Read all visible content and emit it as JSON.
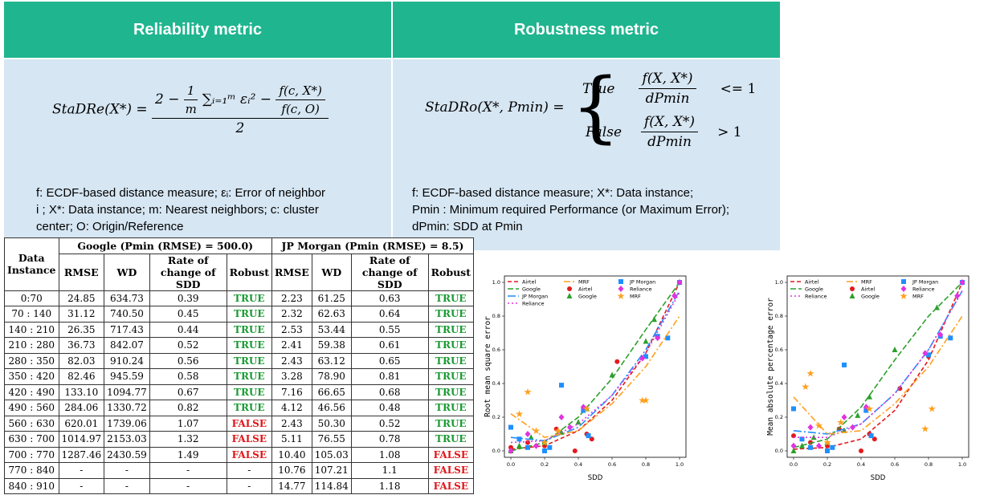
{
  "reliability": {
    "title": "Reliability metric",
    "formula_lhs": "StaDRe(X*) =",
    "num_2": "2 −",
    "frac1_num": "1",
    "frac1_den": "m",
    "sum_term": "∑ᵢ₌₁ᵐ εᵢ² −",
    "frac2_num": "f(c, X*)",
    "frac2_den": "f(c, O)",
    "den": "2",
    "desc_lines": [
      "f: ECDF-based distance measure; εᵢ: Error of neighbor",
      "i ; X*: Data instance;  m: Nearest neighbors; c: cluster",
      "center; O: Origin/Reference"
    ]
  },
  "robustness": {
    "title": "Robustness metric",
    "formula_lhs": "StaDRo(X*, Pmin) =",
    "case_true": "True",
    "case_false": "False",
    "frac_num": "f(X, X*)",
    "frac_den": "dPmin",
    "cmp_true": "<= 1",
    "cmp_false": "> 1",
    "desc_lines": [
      "f: ECDF-based distance measure; X*: Data instance;",
      "Pmin : Minimum required Performance (or Maximum Error);",
      "dPmin: SDD at Pmin"
    ]
  },
  "table": {
    "col_data_instance": "Data Instance",
    "google_header": "Google (Pmin (RMSE) = 500.0)",
    "jp_header": "JP Morgan (Pmin (RMSE) = 8.5)",
    "sub_headers": [
      "RMSE",
      "WD",
      "Rate of change of SDD",
      "Robust",
      "RMSE",
      "WD",
      "Rate of change of SDD",
      "Robust"
    ],
    "rows": [
      [
        "0:70",
        "24.85",
        "634.73",
        "0.39",
        "TRUE",
        "2.23",
        "61.25",
        "0.63",
        "TRUE"
      ],
      [
        "70 : 140",
        "31.12",
        "740.50",
        "0.45",
        "TRUE",
        "2.32",
        "62.63",
        "0.64",
        "TRUE"
      ],
      [
        "140 : 210",
        "26.35",
        "717.43",
        "0.44",
        "TRUE",
        "2.53",
        "53.44",
        "0.55",
        "TRUE"
      ],
      [
        "210 : 280",
        "36.73",
        "842.07",
        "0.52",
        "TRUE",
        "2.41",
        "59.38",
        "0.61",
        "TRUE"
      ],
      [
        "280 : 350",
        "82.03",
        "910.24",
        "0.56",
        "TRUE",
        "2.43",
        "63.12",
        "0.65",
        "TRUE"
      ],
      [
        "350 : 420",
        "82.46",
        "945.59",
        "0.58",
        "TRUE",
        "3.28",
        "78.90",
        "0.81",
        "TRUE"
      ],
      [
        "420 : 490",
        "133.10",
        "1094.77",
        "0.67",
        "TRUE",
        "7.16",
        "66.65",
        "0.68",
        "TRUE"
      ],
      [
        "490 : 560",
        "284.06",
        "1330.72",
        "0.82",
        "TRUE",
        "4.12",
        "46.56",
        "0.48",
        "TRUE"
      ],
      [
        "560 : 630",
        "620.01",
        "1739.06",
        "1.07",
        "FALSE",
        "2.43",
        "50.30",
        "0.52",
        "TRUE"
      ],
      [
        "630 : 700",
        "1014.97",
        "2153.03",
        "1.32",
        "FALSE",
        "5.11",
        "76.55",
        "0.78",
        "TRUE"
      ],
      [
        "700 : 770",
        "1287.46",
        "2430.59",
        "1.49",
        "FALSE",
        "10.40",
        "105.03",
        "1.08",
        "FALSE"
      ],
      [
        "770 : 840",
        "-",
        "-",
        "-",
        "-",
        "10.76",
        "107.21",
        "1.1",
        "FALSE"
      ],
      [
        "840 : 910",
        "-",
        "-",
        "-",
        "-",
        "14.77",
        "114.84",
        "1.18",
        "FALSE"
      ]
    ]
  },
  "colors": {
    "header_green": "#1fb58f",
    "panel_blue": "#d6e6f3",
    "true_green": "#1a9a33",
    "false_red": "#e0161b",
    "airtel": "#e41a1c",
    "google": "#2ca02c",
    "jpmorgan": "#1f8fff",
    "reliance": "#e033e0",
    "mrf": "#ff9f1c"
  },
  "chart_data": [
    {
      "type": "scatter",
      "xlabel": "SDD",
      "ylabel": "Root mean square error",
      "xlim": [
        0,
        1
      ],
      "ylim": [
        0,
        1
      ],
      "xticks": [
        "0.0",
        "0.2",
        "0.4",
        "0.6",
        "0.8",
        "1.0"
      ],
      "yticks": [
        "0.0",
        "0.2",
        "0.4",
        "0.6",
        "0.8",
        "1.0"
      ],
      "legend_lines": [
        "Airtel",
        "Google",
        "JP Morgan",
        "Reliance",
        "MRF"
      ],
      "legend_points": [
        "Airtel",
        "Google",
        "JP Morgan",
        "Reliance",
        "MRF"
      ],
      "series": [
        {
          "name": "Airtel",
          "marker": "circle",
          "color": "#e41a1c",
          "points": [
            [
              0.0,
              0.02
            ],
            [
              0.1,
              0.05
            ],
            [
              0.2,
              0.03
            ],
            [
              0.27,
              0.13
            ],
            [
              0.38,
              0.0
            ],
            [
              0.45,
              0.1
            ],
            [
              0.48,
              0.07
            ],
            [
              0.63,
              0.53
            ],
            [
              0.8,
              0.56
            ],
            [
              1.0,
              1.0
            ]
          ],
          "fit": [
            [
              0,
              0.01
            ],
            [
              0.2,
              0.03
            ],
            [
              0.4,
              0.12
            ],
            [
              0.6,
              0.3
            ],
            [
              0.8,
              0.58
            ],
            [
              1.0,
              1.0
            ]
          ]
        },
        {
          "name": "Google",
          "marker": "triangle",
          "color": "#2ca02c",
          "points": [
            [
              0.0,
              0.0
            ],
            [
              0.05,
              0.03
            ],
            [
              0.12,
              0.08
            ],
            [
              0.2,
              0.05
            ],
            [
              0.3,
              0.11
            ],
            [
              0.4,
              0.17
            ],
            [
              0.45,
              0.25
            ],
            [
              0.6,
              0.45
            ],
            [
              0.8,
              0.65
            ],
            [
              0.85,
              0.78
            ],
            [
              1.0,
              1.0
            ]
          ],
          "fit": [
            [
              0,
              0.0
            ],
            [
              0.2,
              0.05
            ],
            [
              0.4,
              0.2
            ],
            [
              0.6,
              0.43
            ],
            [
              0.8,
              0.72
            ],
            [
              1.0,
              1.0
            ]
          ]
        },
        {
          "name": "JP Morgan",
          "marker": "square",
          "color": "#1f8fff",
          "points": [
            [
              0.0,
              0.14
            ],
            [
              0.05,
              0.07
            ],
            [
              0.1,
              0.02
            ],
            [
              0.2,
              0.0
            ],
            [
              0.23,
              0.02
            ],
            [
              0.3,
              0.39
            ],
            [
              0.43,
              0.24
            ],
            [
              0.46,
              0.09
            ],
            [
              0.8,
              0.56
            ],
            [
              0.87,
              0.68
            ],
            [
              0.93,
              0.67
            ],
            [
              1.0,
              1.0
            ]
          ],
          "fit": [
            [
              0,
              0.08
            ],
            [
              0.2,
              0.06
            ],
            [
              0.4,
              0.14
            ],
            [
              0.6,
              0.33
            ],
            [
              0.8,
              0.6
            ],
            [
              1.0,
              0.95
            ]
          ]
        },
        {
          "name": "Reliance",
          "marker": "diamond",
          "color": "#e033e0",
          "points": [
            [
              0.0,
              0.0
            ],
            [
              0.1,
              0.1
            ],
            [
              0.15,
              0.03
            ],
            [
              0.3,
              0.2
            ],
            [
              0.35,
              0.14
            ],
            [
              0.43,
              0.26
            ],
            [
              0.78,
              0.55
            ],
            [
              0.87,
              0.67
            ],
            [
              0.97,
              0.92
            ],
            [
              1.0,
              1.0
            ]
          ],
          "fit": [
            [
              0,
              0.05
            ],
            [
              0.2,
              0.06
            ],
            [
              0.4,
              0.16
            ],
            [
              0.6,
              0.33
            ],
            [
              0.8,
              0.58
            ],
            [
              1.0,
              0.94
            ]
          ]
        },
        {
          "name": "MRF",
          "marker": "star",
          "color": "#ff9f1c",
          "points": [
            [
              0.05,
              0.22
            ],
            [
              0.1,
              0.35
            ],
            [
              0.15,
              0.12
            ],
            [
              0.2,
              0.05
            ],
            [
              0.28,
              0.12
            ],
            [
              0.45,
              0.25
            ],
            [
              0.78,
              0.3
            ],
            [
              0.8,
              0.3
            ]
          ],
          "fit": [
            [
              0,
              0.22
            ],
            [
              0.2,
              0.08
            ],
            [
              0.4,
              0.12
            ],
            [
              0.6,
              0.28
            ],
            [
              0.8,
              0.5
            ],
            [
              1.0,
              0.8
            ]
          ]
        }
      ]
    },
    {
      "type": "scatter",
      "xlabel": "SDD",
      "ylabel": "Mean absolute percentage error",
      "xlim": [
        0,
        1
      ],
      "ylim": [
        0,
        1
      ],
      "xticks": [
        "0.0",
        "0.2",
        "0.4",
        "0.6",
        "0.8",
        "1.0"
      ],
      "yticks": [
        "0.0",
        "0.2",
        "0.4",
        "0.6",
        "0.8",
        "1.0"
      ],
      "legend_lines": [
        "Airtel",
        "Google",
        "MRF",
        "Reliance"
      ],
      "legend_points": [
        "JP Morgan",
        "Airtel",
        "Reliance",
        "Google",
        "MRF"
      ],
      "series": [
        {
          "name": "Airtel",
          "marker": "circle",
          "color": "#e41a1c",
          "points": [
            [
              0.0,
              0.09
            ],
            [
              0.1,
              0.05
            ],
            [
              0.2,
              0.03
            ],
            [
              0.27,
              0.13
            ],
            [
              0.4,
              0.0
            ],
            [
              0.45,
              0.1
            ],
            [
              0.48,
              0.07
            ],
            [
              0.63,
              0.37
            ],
            [
              0.8,
              0.56
            ],
            [
              1.0,
              1.0
            ]
          ],
          "fit": [
            [
              0,
              0.01
            ],
            [
              0.2,
              0.02
            ],
            [
              0.4,
              0.07
            ],
            [
              0.6,
              0.24
            ],
            [
              0.8,
              0.54
            ],
            [
              1.0,
              1.0
            ]
          ]
        },
        {
          "name": "Google",
          "marker": "triangle",
          "color": "#2ca02c",
          "points": [
            [
              0.0,
              0.0
            ],
            [
              0.05,
              0.03
            ],
            [
              0.12,
              0.08
            ],
            [
              0.2,
              0.05
            ],
            [
              0.3,
              0.12
            ],
            [
              0.38,
              0.21
            ],
            [
              0.45,
              0.32
            ],
            [
              0.6,
              0.6
            ],
            [
              0.85,
              0.85
            ],
            [
              1.0,
              1.0
            ]
          ],
          "fit": [
            [
              0,
              0.02
            ],
            [
              0.2,
              0.07
            ],
            [
              0.4,
              0.26
            ],
            [
              0.6,
              0.54
            ],
            [
              0.8,
              0.8
            ],
            [
              1.0,
              1.0
            ]
          ]
        },
        {
          "name": "JP Morgan",
          "marker": "square",
          "color": "#1f8fff",
          "points": [
            [
              0.0,
              0.25
            ],
            [
              0.05,
              0.07
            ],
            [
              0.1,
              0.02
            ],
            [
              0.2,
              0.0
            ],
            [
              0.23,
              0.02
            ],
            [
              0.3,
              0.51
            ],
            [
              0.43,
              0.24
            ],
            [
              0.46,
              0.09
            ],
            [
              0.8,
              0.57
            ],
            [
              0.87,
              0.68
            ],
            [
              0.93,
              0.67
            ],
            [
              1.0,
              1.0
            ]
          ],
          "fit": [
            [
              0,
              0.12
            ],
            [
              0.2,
              0.1
            ],
            [
              0.4,
              0.16
            ],
            [
              0.6,
              0.34
            ],
            [
              0.8,
              0.6
            ],
            [
              1.0,
              0.95
            ]
          ]
        },
        {
          "name": "Reliance",
          "marker": "diamond",
          "color": "#e033e0",
          "points": [
            [
              0.0,
              0.03
            ],
            [
              0.1,
              0.14
            ],
            [
              0.15,
              0.03
            ],
            [
              0.3,
              0.2
            ],
            [
              0.35,
              0.14
            ],
            [
              0.43,
              0.26
            ],
            [
              0.78,
              0.58
            ],
            [
              0.87,
              0.69
            ],
            [
              0.97,
              0.92
            ],
            [
              1.0,
              1.0
            ]
          ],
          "fit": [
            [
              0,
              0.08
            ],
            [
              0.2,
              0.08
            ],
            [
              0.4,
              0.16
            ],
            [
              0.6,
              0.34
            ],
            [
              0.8,
              0.6
            ],
            [
              1.0,
              0.95
            ]
          ]
        },
        {
          "name": "MRF",
          "marker": "star",
          "color": "#ff9f1c",
          "points": [
            [
              0.07,
              0.38
            ],
            [
              0.1,
              0.46
            ],
            [
              0.15,
              0.15
            ],
            [
              0.2,
              0.05
            ],
            [
              0.28,
              0.17
            ],
            [
              0.45,
              0.25
            ],
            [
              0.78,
              0.13
            ],
            [
              0.82,
              0.25
            ]
          ],
          "fit": [
            [
              0,
              0.32
            ],
            [
              0.2,
              0.1
            ],
            [
              0.4,
              0.12
            ],
            [
              0.6,
              0.28
            ],
            [
              0.8,
              0.5
            ],
            [
              1.0,
              0.8
            ]
          ]
        }
      ]
    }
  ]
}
